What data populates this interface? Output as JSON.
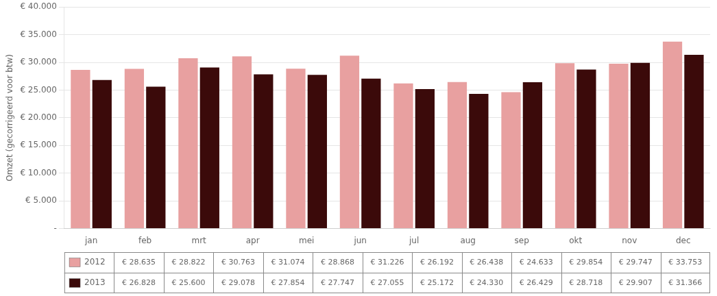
{
  "chart_data": {
    "type": "bar",
    "categories": [
      "jan",
      "feb",
      "mrt",
      "apr",
      "mei",
      "jun",
      "jul",
      "aug",
      "sep",
      "okt",
      "nov",
      "dec"
    ],
    "series": [
      {
        "name": "2012",
        "color": "#E8A0A0",
        "values": [
          28635,
          28822,
          30763,
          31074,
          28868,
          31226,
          26192,
          26438,
          24633,
          29854,
          29747,
          33753
        ],
        "value_labels": [
          "€ 28.635",
          "€ 28.822",
          "€ 30.763",
          "€ 31.074",
          "€ 28.868",
          "€ 31.226",
          "€ 26.192",
          "€ 26.438",
          "€ 24.633",
          "€ 29.854",
          "€ 29.747",
          "€ 33.753"
        ]
      },
      {
        "name": "2013",
        "color": "#3B0A0A",
        "values": [
          26828,
          25600,
          29078,
          27854,
          27747,
          27055,
          25172,
          24330,
          26429,
          28718,
          29907,
          31366
        ],
        "value_labels": [
          "€ 26.828",
          "€ 25.600",
          "€ 29.078",
          "€ 27.854",
          "€ 27.747",
          "€ 27.055",
          "€ 25.172",
          "€ 24.330",
          "€ 26.429",
          "€ 28.718",
          "€ 29.907",
          "€ 31.366"
        ]
      }
    ],
    "y_label": "Omzet (gecorrigeerd voor btw)",
    "ylim": [
      0,
      40000
    ],
    "yticks": [
      {
        "value": 0,
        "label": "-"
      },
      {
        "value": 5000,
        "label": "€ 5.000"
      },
      {
        "value": 10000,
        "label": "€ 10.000"
      },
      {
        "value": 15000,
        "label": "€ 15.000"
      },
      {
        "value": 20000,
        "label": "€ 20.000"
      },
      {
        "value": 25000,
        "label": "€ 25.000"
      },
      {
        "value": 30000,
        "label": "€ 30.000"
      },
      {
        "value": 35000,
        "label": "€ 35.000"
      },
      {
        "value": 40000,
        "label": "€ 40.000"
      }
    ],
    "grid": true,
    "legend": "bottom"
  }
}
